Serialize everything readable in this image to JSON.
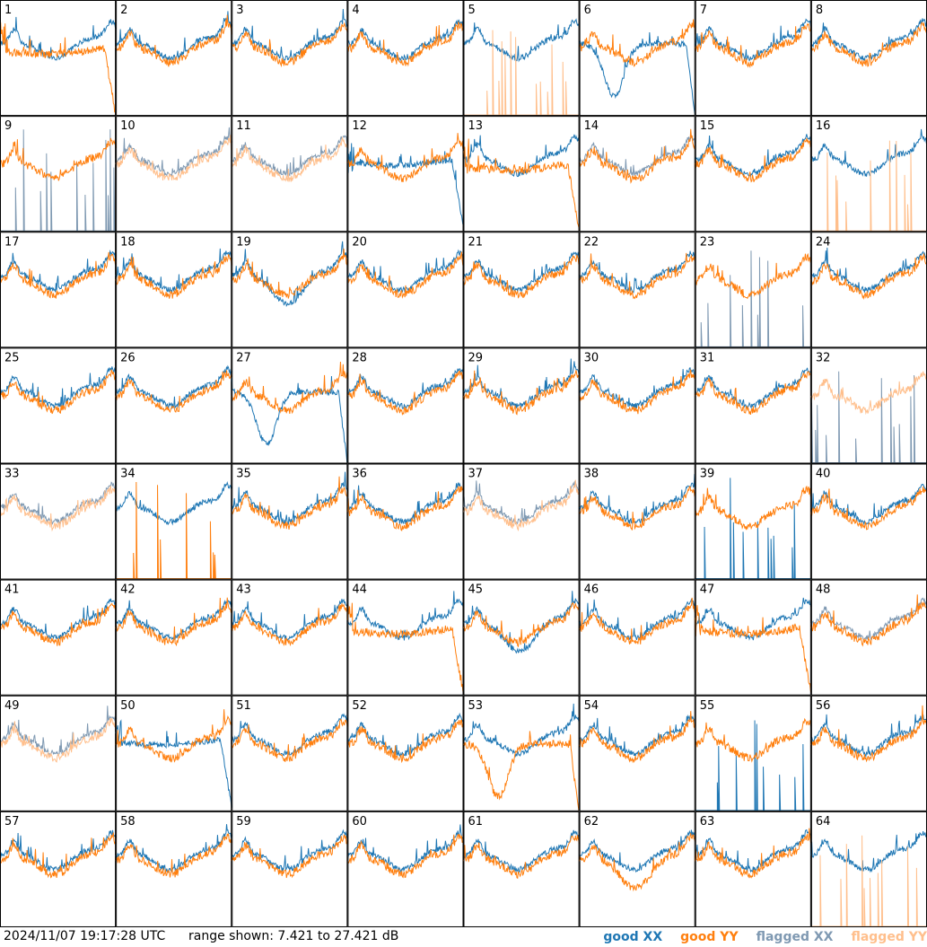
{
  "chart_data": {
    "type": "line",
    "panels_count": 64,
    "panel_labels": [
      "1",
      "2",
      "3",
      "4",
      "5",
      "6",
      "7",
      "8",
      "9",
      "10",
      "11",
      "12",
      "13",
      "14",
      "15",
      "16",
      "17",
      "18",
      "19",
      "20",
      "21",
      "22",
      "23",
      "24",
      "25",
      "26",
      "27",
      "28",
      "29",
      "30",
      "31",
      "32",
      "33",
      "34",
      "35",
      "36",
      "37",
      "38",
      "39",
      "40",
      "41",
      "42",
      "43",
      "44",
      "45",
      "46",
      "47",
      "48",
      "49",
      "50",
      "51",
      "52",
      "53",
      "54",
      "55",
      "56",
      "57",
      "58",
      "59",
      "60",
      "61",
      "62",
      "63",
      "64"
    ],
    "ylim_db": [
      7.421,
      27.421
    ],
    "series": [
      {
        "name": "good XX",
        "color": "#1f77b4"
      },
      {
        "name": "good YY",
        "color": "#ff7f0e"
      },
      {
        "name": "flagged XX",
        "color": "#7f99b2"
      },
      {
        "name": "flagged YY",
        "color": "#ffbf8c"
      }
    ],
    "panels": {
      "1": {
        "xx": "good",
        "yy": "good",
        "xx_shape": "normal",
        "yy_shape": "droop"
      },
      "5": {
        "xx": "good",
        "yy": "flagged",
        "yy_shape": "spikes"
      },
      "6": {
        "xx": "good",
        "yy": "good",
        "xx_shape": "dip"
      },
      "9": {
        "xx": "flagged",
        "yy": "good",
        "xx_shape": "spikes"
      },
      "10": {
        "xx": "flagged",
        "yy": "flagged"
      },
      "11": {
        "xx": "flagged",
        "yy": "flagged"
      },
      "12": {
        "xx": "good",
        "yy": "good",
        "xx_shape": "droop"
      },
      "13": {
        "xx": "good",
        "yy": "good",
        "yy_shape": "droop"
      },
      "14": {
        "xx": "flagged",
        "yy": "good"
      },
      "16": {
        "xx": "good",
        "yy": "flagged",
        "yy_shape": "spikes"
      },
      "19": {
        "xx": "good",
        "yy": "good",
        "xx_shape": "low"
      },
      "23": {
        "xx": "flagged",
        "yy": "good",
        "xx_shape": "spikes"
      },
      "25": {
        "xx": "good",
        "yy": "good",
        "xx_shape": "spike1"
      },
      "27": {
        "xx": "good",
        "yy": "good",
        "xx_shape": "dip"
      },
      "32": {
        "xx": "flagged",
        "yy": "flagged",
        "xx_shape": "spikes"
      },
      "33": {
        "xx": "flagged",
        "yy": "flagged"
      },
      "34": {
        "xx": "good",
        "yy": "good",
        "yy_shape": "spikes"
      },
      "37": {
        "xx": "flagged",
        "yy": "flagged"
      },
      "39": {
        "xx": "good",
        "yy": "good",
        "xx_shape": "spikes"
      },
      "44": {
        "xx": "good",
        "yy": "good",
        "yy_shape": "droop"
      },
      "45": {
        "xx": "good",
        "yy": "good",
        "xx_shape": "low"
      },
      "47": {
        "xx": "good",
        "yy": "good",
        "yy_shape": "droop"
      },
      "48": {
        "xx": "flagged",
        "yy": "good"
      },
      "49": {
        "xx": "flagged",
        "yy": "flagged"
      },
      "50": {
        "xx": "good",
        "yy": "good",
        "xx_shape": "droop"
      },
      "53": {
        "xx": "good",
        "yy": "good",
        "yy_shape": "dip"
      },
      "55": {
        "xx": "good",
        "yy": "good",
        "xx_shape": "spikes"
      },
      "62": {
        "xx": "good",
        "yy": "good",
        "yy_shape": "low"
      },
      "64": {
        "xx": "good",
        "yy": "flagged",
        "yy_shape": "spikes"
      }
    }
  },
  "footer": {
    "timestamp": "2024/11/07 19:17:28 UTC",
    "range_text": "range shown: 7.421 to 27.421 dB",
    "legend": [
      {
        "label": "good XX",
        "color": "#1f77b4"
      },
      {
        "label": "good YY",
        "color": "#ff7f0e"
      },
      {
        "label": "flagged XX",
        "color": "#7f99b2"
      },
      {
        "label": "flagged YY",
        "color": "#ffbf8c"
      }
    ]
  }
}
